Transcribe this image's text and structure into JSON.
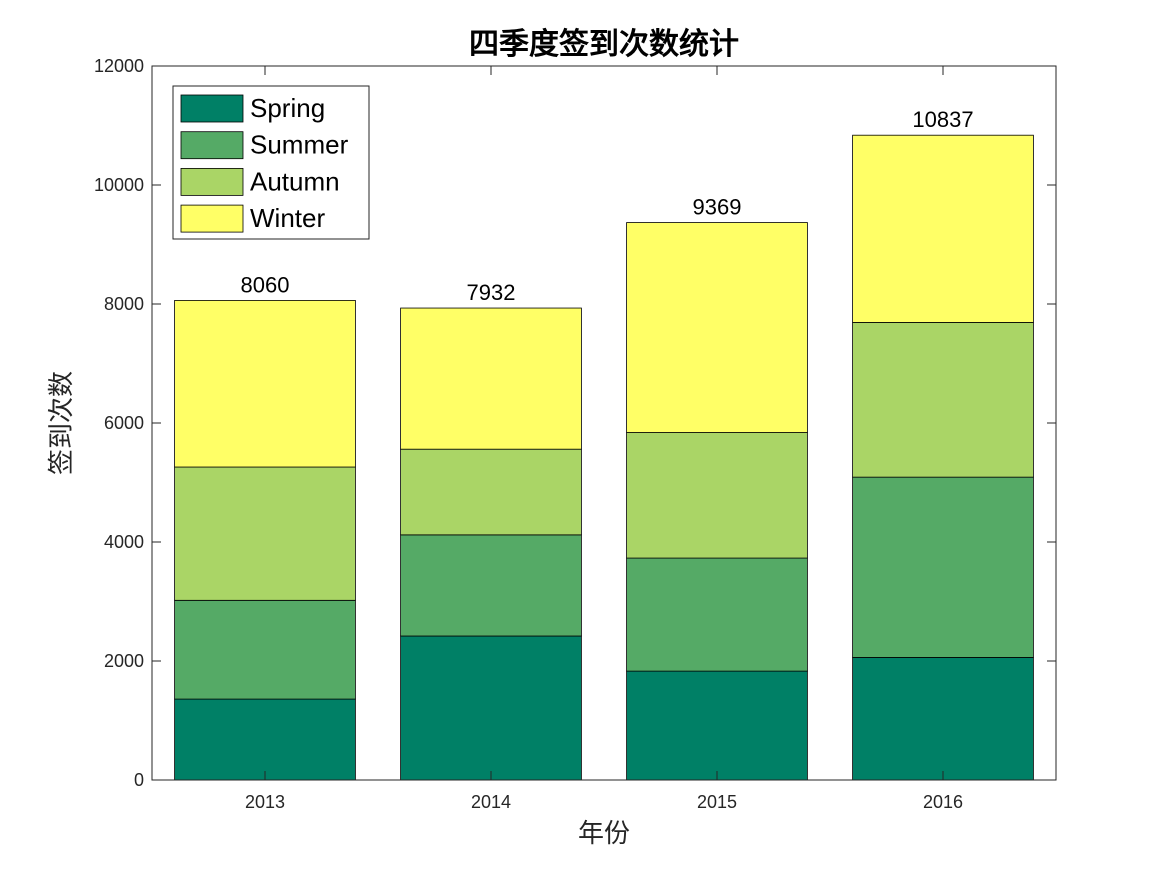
{
  "chart_data": {
    "type": "bar",
    "stacked": true,
    "title": "四季度签到次数统计",
    "xlabel": "年份",
    "ylabel": "签到次数",
    "categories": [
      "2013",
      "2014",
      "2015",
      "2016"
    ],
    "ylim": [
      0,
      12000
    ],
    "yticks": [
      0,
      2000,
      4000,
      6000,
      8000,
      10000,
      12000
    ],
    "grid": false,
    "legend_position": "top-left",
    "series": [
      {
        "name": "Spring",
        "color": "#008066",
        "values": [
          1360,
          2420,
          1830,
          2060
        ]
      },
      {
        "name": "Summer",
        "color": "#55AA66",
        "values": [
          1660,
          1700,
          1900,
          3030
        ]
      },
      {
        "name": "Autumn",
        "color": "#AAD566",
        "values": [
          2240,
          1440,
          2110,
          2600
        ]
      },
      {
        "name": "Winter",
        "color": "#FFFF66",
        "values": [
          2800,
          2372,
          3529,
          3147
        ]
      }
    ],
    "totals": [
      8060,
      7932,
      9369,
      10837
    ]
  }
}
